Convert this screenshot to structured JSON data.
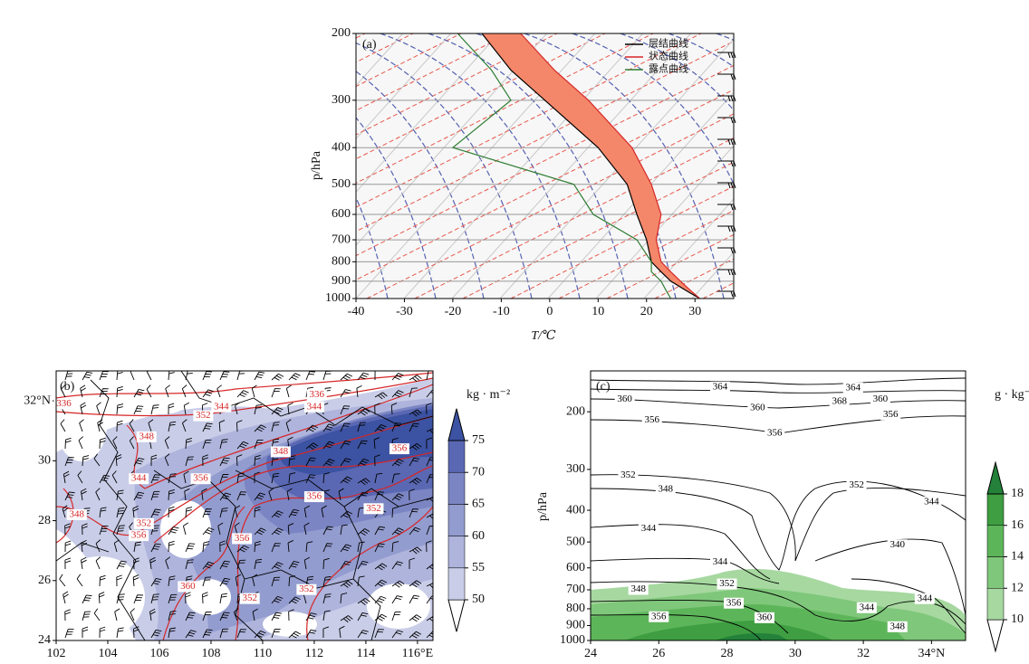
{
  "chart_data": [
    {
      "type": "line",
      "label": "(a)",
      "xlabel": "T/℃",
      "ylabel": "p/hPa",
      "y": [
        1000,
        950,
        900,
        850,
        800,
        700,
        600,
        500,
        400,
        300,
        250,
        200
      ],
      "series": [
        {
          "name": "层结曲线",
          "color": "#000000",
          "values": [
            31,
            28,
            25,
            23,
            21,
            20,
            18,
            16,
            10,
            -1,
            -8,
            -14
          ]
        },
        {
          "name": "状态曲线",
          "color": "#d62728",
          "values": [
            31,
            29,
            27,
            25,
            23,
            22,
            23,
            21,
            17,
            8,
            1,
            -6
          ]
        },
        {
          "name": "露点曲线",
          "color": "#2e7d32",
          "values": [
            25,
            24,
            23,
            21,
            21,
            18,
            9,
            5,
            -20,
            -8,
            -12,
            -19
          ]
        }
      ],
      "fill_color": "#f4876a",
      "xlim": [
        -40,
        38
      ],
      "xticks": [
        -40,
        -30,
        -20,
        -10,
        0,
        10,
        20,
        30
      ],
      "ylim": [
        1000,
        200
      ],
      "yticks": [
        200,
        300,
        400,
        500,
        600,
        700,
        800,
        900,
        1000
      ],
      "y_log": true,
      "grid": true,
      "legend": "upper right"
    },
    {
      "type": "contour",
      "label": "(b)",
      "contour_color": "#d62728",
      "xlim": [
        102,
        116.6
      ],
      "xticks": [
        102,
        104,
        106,
        108,
        110,
        112,
        114,
        {
          "value": 116,
          "label": "116°E"
        }
      ],
      "ylim": [
        24,
        33
      ],
      "yticks": [
        24,
        26,
        28,
        30,
        {
          "value": 32,
          "label": "32°N"
        }
      ],
      "colorbar": {
        "label": "kg · m⁻²",
        "levels": [
          50,
          55,
          60,
          65,
          70,
          75
        ],
        "colors": [
          "#c9cde8",
          "#aeb4dc",
          "#939ccf",
          "#7b85c3",
          "#5a68b3",
          "#3c52a2"
        ]
      },
      "contour_labels": [
        {
          "x": 102.3,
          "y": 31.9,
          "value": 336
        },
        {
          "x": 107.7,
          "y": 31.5,
          "value": 352
        },
        {
          "x": 108.4,
          "y": 31.8,
          "value": 344
        },
        {
          "x": 112.1,
          "y": 32.2,
          "value": 336
        },
        {
          "x": 112.0,
          "y": 31.8,
          "value": 344
        },
        {
          "x": 105.5,
          "y": 30.8,
          "value": 348
        },
        {
          "x": 110.7,
          "y": 30.3,
          "value": 348
        },
        {
          "x": 115.3,
          "y": 30.4,
          "value": 356
        },
        {
          "x": 105.2,
          "y": 29.4,
          "value": 344
        },
        {
          "x": 107.6,
          "y": 29.4,
          "value": 356
        },
        {
          "x": 112.0,
          "y": 28.8,
          "value": 356
        },
        {
          "x": 102.8,
          "y": 28.2,
          "value": 348
        },
        {
          "x": 105.4,
          "y": 27.9,
          "value": 352
        },
        {
          "x": 105.2,
          "y": 27.5,
          "value": 356
        },
        {
          "x": 114.3,
          "y": 28.4,
          "value": 352
        },
        {
          "x": 109.2,
          "y": 27.4,
          "value": 356
        },
        {
          "x": 107.1,
          "y": 25.8,
          "value": 360
        },
        {
          "x": 109.5,
          "y": 25.4,
          "value": 352
        },
        {
          "x": 111.7,
          "y": 25.7,
          "value": 352
        }
      ]
    },
    {
      "type": "contour",
      "label": "(c)",
      "ylabel": "p/hPa",
      "contour_color": "#000000",
      "xlim": [
        24,
        35
      ],
      "xticks": [
        24,
        26,
        28,
        30,
        32,
        {
          "value": 34,
          "label": "34°N"
        }
      ],
      "ylim": [
        1000,
        150
      ],
      "yticks": [
        200,
        300,
        400,
        500,
        600,
        700,
        800,
        900,
        1000
      ],
      "y_log": true,
      "colorbar": {
        "label": "g · kg⁻¹",
        "levels": [
          10,
          12,
          14,
          16,
          18
        ],
        "colors": [
          "#a6d8a0",
          "#7fc77a",
          "#5db55a",
          "#3e9e41",
          "#23813a"
        ]
      },
      "contour_labels": [
        {
          "x": 31.3,
          "y": 186,
          "value": 368
        },
        {
          "x": 27.8,
          "y": 168,
          "value": 364
        },
        {
          "x": 31.7,
          "y": 169,
          "value": 364
        },
        {
          "x": 25.0,
          "y": 183,
          "value": 360
        },
        {
          "x": 28.9,
          "y": 195,
          "value": 360
        },
        {
          "x": 32.5,
          "y": 183,
          "value": 360
        },
        {
          "x": 25.8,
          "y": 212,
          "value": 356
        },
        {
          "x": 29.4,
          "y": 233,
          "value": 356
        },
        {
          "x": 32.8,
          "y": 204,
          "value": 356
        },
        {
          "x": 25.1,
          "y": 313,
          "value": 352
        },
        {
          "x": 31.8,
          "y": 336,
          "value": 352
        },
        {
          "x": 26.2,
          "y": 345,
          "value": 348
        },
        {
          "x": 34.0,
          "y": 377,
          "value": 344
        },
        {
          "x": 25.7,
          "y": 455,
          "value": 344
        },
        {
          "x": 33.0,
          "y": 510,
          "value": 340
        },
        {
          "x": 27.8,
          "y": 576,
          "value": 344
        },
        {
          "x": 28.0,
          "y": 672,
          "value": 352
        },
        {
          "x": 25.4,
          "y": 698,
          "value": 348
        },
        {
          "x": 28.2,
          "y": 769,
          "value": 356
        },
        {
          "x": 29.1,
          "y": 852,
          "value": 360
        },
        {
          "x": 26.0,
          "y": 846,
          "value": 356
        },
        {
          "x": 32.1,
          "y": 794,
          "value": 344
        },
        {
          "x": 33.8,
          "y": 745,
          "value": 344
        },
        {
          "x": 33.0,
          "y": 908,
          "value": 348
        }
      ]
    }
  ]
}
